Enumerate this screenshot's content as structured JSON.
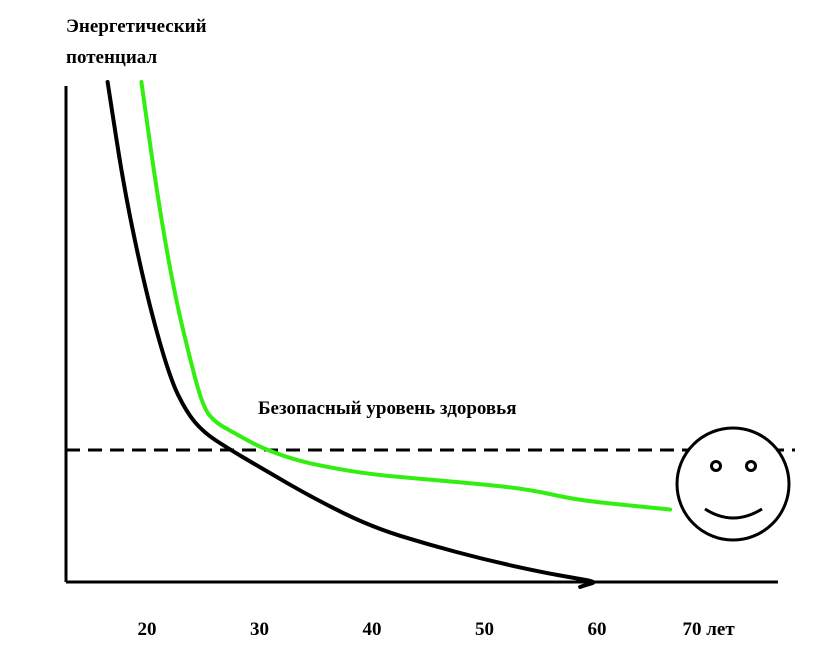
{
  "chart_data": {
    "type": "line",
    "ylabel_lines": [
      "Энергетический",
      "потенциал"
    ],
    "xlabel": "лет",
    "x_ticks": [
      20,
      30,
      40,
      50,
      60,
      70
    ],
    "x_tick_labels": [
      "20",
      "30",
      "40",
      "50",
      "60",
      "70 лет"
    ],
    "xlim": [
      14,
      78
    ],
    "threshold": {
      "label": "Безопасный уровень здоровья",
      "style": "dashed"
    },
    "series": [
      {
        "color": "#000000",
        "points": [
          [
            16.5,
            100
          ],
          [
            18,
            78
          ],
          [
            20,
            57
          ],
          [
            22,
            41
          ],
          [
            23.5,
            34
          ],
          [
            25,
            30
          ],
          [
            27,
            27
          ],
          [
            30,
            23
          ],
          [
            35,
            16.5
          ],
          [
            40,
            11
          ],
          [
            45,
            7.5
          ],
          [
            50,
            4.5
          ],
          [
            55,
            2
          ],
          [
            58,
            0.8
          ],
          [
            60,
            0
          ],
          [
            59,
            -0.6
          ],
          [
            58.5,
            -1
          ]
        ]
      },
      {
        "color": "#33ee11",
        "points": [
          [
            19.5,
            100
          ],
          [
            21,
            76
          ],
          [
            22.5,
            57
          ],
          [
            24,
            43
          ],
          [
            25,
            35
          ],
          [
            26,
            32
          ],
          [
            28,
            29.5
          ],
          [
            30,
            27
          ],
          [
            33,
            24.5
          ],
          [
            36,
            23
          ],
          [
            40,
            21.5
          ],
          [
            45,
            20.5
          ],
          [
            50,
            19.5
          ],
          [
            54,
            18.5
          ],
          [
            58,
            16.5
          ],
          [
            62,
            15.5
          ],
          [
            66.5,
            14.5
          ]
        ]
      }
    ],
    "annotation_icon": "smiley-face-icon"
  }
}
